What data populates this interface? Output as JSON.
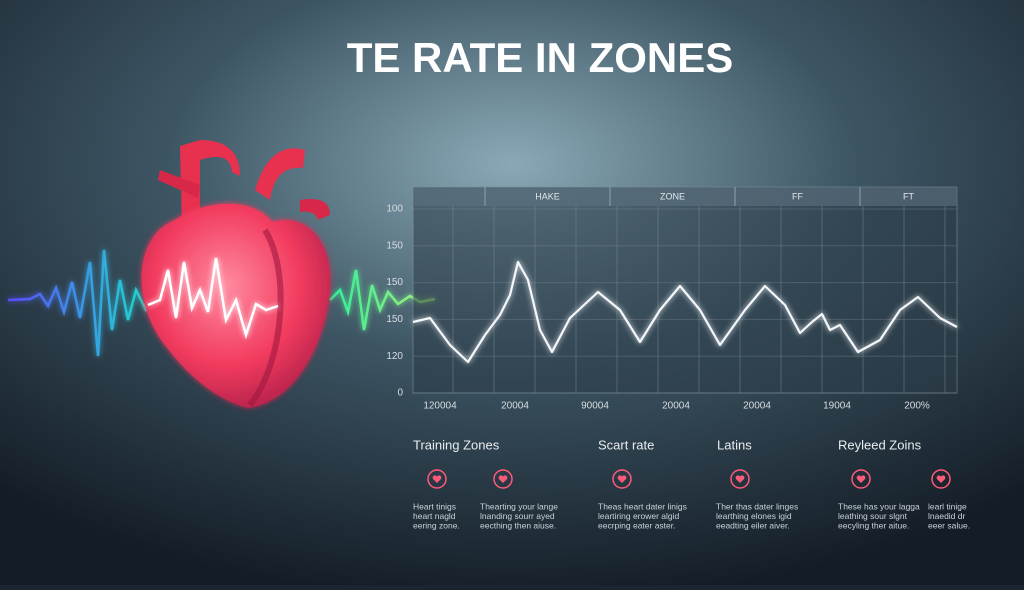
{
  "header": {
    "title": "TE RATE IN ZONES"
  },
  "chart": {
    "columns": [
      "HAKE",
      "ZONE",
      "FF",
      "FT"
    ],
    "y_labels": [
      "100",
      "150",
      "150",
      "150",
      "120",
      "0"
    ],
    "x_labels": [
      "120004",
      "20004",
      "90004",
      "20004",
      "20004",
      "19004",
      "200%"
    ]
  },
  "sections": [
    "Training Zones",
    "Scart rate",
    "Latins",
    "Reyleed Zoins"
  ],
  "notes": [
    [
      "Heart tinigs",
      "heart nagld",
      "eering zone."
    ],
    [
      "Thearting your lange",
      "lnanding sourr ayed",
      "eecthing then aiuse."
    ],
    [
      "Theas heart dater linigs",
      "leartiring erower algid",
      "eecrping eater aster."
    ],
    [
      "Ther thas dater linges",
      "learthing elones igid",
      "eeadting eiler aiver."
    ],
    [
      "These has your lagga",
      "leathing sour slgnt",
      "eecyling ther aitue."
    ],
    [
      "learl tinige",
      "lnaedid dr",
      "eeer salue."
    ]
  ]
}
